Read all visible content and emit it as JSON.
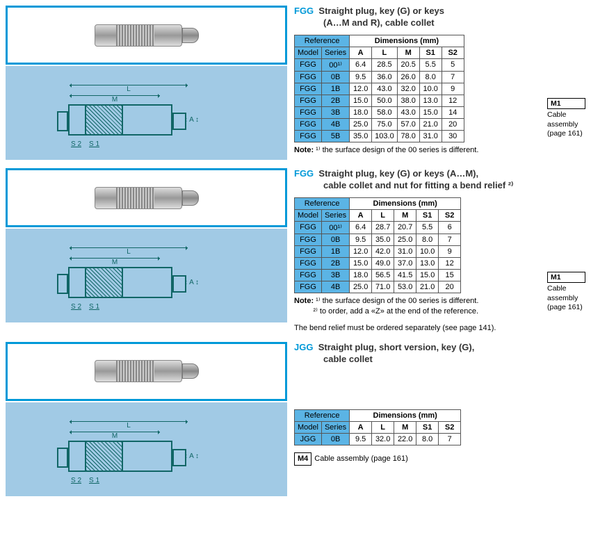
{
  "colors": {
    "accent": "#0099d8",
    "table_header": "#5bb4e5",
    "diagram_bg": "#a1cae5",
    "diagram_line": "#166"
  },
  "sections": [
    {
      "code": "FGG",
      "desc_l1": "Straight plug, key (G) or keys",
      "desc_l2": "(A…M and R), cable collet",
      "table": {
        "ref_header": "Reference",
        "dim_header": "Dimensions (mm)",
        "cols": [
          "Model",
          "Series",
          "A",
          "L",
          "M",
          "S1",
          "S2"
        ],
        "rows": [
          [
            "FGG",
            "00¹⁾",
            "6.4",
            "28.5",
            "20.5",
            "5.5",
            "5"
          ],
          [
            "FGG",
            "0B",
            "9.5",
            "36.0",
            "26.0",
            "8.0",
            "7"
          ],
          [
            "FGG",
            "1B",
            "12.0",
            "43.0",
            "32.0",
            "10.0",
            "9"
          ],
          [
            "FGG",
            "2B",
            "15.0",
            "50.0",
            "38.0",
            "13.0",
            "12"
          ],
          [
            "FGG",
            "3B",
            "18.0",
            "58.0",
            "43.0",
            "15.0",
            "14"
          ],
          [
            "FGG",
            "4B",
            "25.0",
            "75.0",
            "57.0",
            "21.0",
            "20"
          ],
          [
            "FGG",
            "5B",
            "35.0",
            "103.0",
            "78.0",
            "31.0",
            "30"
          ]
        ]
      },
      "notes": [
        "¹⁾ the surface design of the 00 series is different."
      ],
      "note_prefix": "Note:",
      "side": {
        "mark": "M1",
        "text_l1": "Cable assembly",
        "text_l2": "(page 161)"
      },
      "dims": {
        "L": "L",
        "M": "M",
        "A": "↕ A ↕",
        "S1": "S 1",
        "S2": "S 2"
      }
    },
    {
      "code": "FGG",
      "desc_l1": "Straight plug, key (G) or keys (A…M),",
      "desc_l2": "cable collet and nut for fitting a bend relief ²⁾",
      "table": {
        "ref_header": "Reference",
        "dim_header": "Dimensions (mm)",
        "cols": [
          "Model",
          "Series",
          "A",
          "L",
          "M",
          "S1",
          "S2"
        ],
        "rows": [
          [
            "FGG",
            "00¹⁾",
            "6.4",
            "28.7",
            "20.7",
            "5.5",
            "6"
          ],
          [
            "FGG",
            "0B",
            "9.5",
            "35.0",
            "25.0",
            "8.0",
            "7"
          ],
          [
            "FGG",
            "1B",
            "12.0",
            "42.0",
            "31.0",
            "10.0",
            "9"
          ],
          [
            "FGG",
            "2B",
            "15.0",
            "49.0",
            "37.0",
            "13.0",
            "12"
          ],
          [
            "FGG",
            "3B",
            "18.0",
            "56.5",
            "41.5",
            "15.0",
            "15"
          ],
          [
            "FGG",
            "4B",
            "25.0",
            "71.0",
            "53.0",
            "21.0",
            "20"
          ]
        ]
      },
      "notes": [
        "¹⁾ the surface design of the 00 series is different.",
        "²⁾ to order, add a «Z» at the end of the reference."
      ],
      "note_prefix": "Note:",
      "extra_note": "The bend relief must be ordered separately (see page 141).",
      "side": {
        "mark": "M1",
        "text_l1": "Cable assembly",
        "text_l2": "(page 161)"
      },
      "dims": {
        "L": "L",
        "M": "M",
        "A": "↕ A ↕",
        "S1": "S 1",
        "S2": "S 2"
      }
    },
    {
      "code": "JGG",
      "desc_l1": "Straight plug, short version, key (G),",
      "desc_l2": "cable collet",
      "table": {
        "ref_header": "Reference",
        "dim_header": "Dimensions (mm)",
        "cols": [
          "Model",
          "Series",
          "A",
          "L",
          "M",
          "S1",
          "S2"
        ],
        "rows": [
          [
            "JGG",
            "0B",
            "9.5",
            "32.0",
            "22.0",
            "8.0",
            "7"
          ]
        ]
      },
      "inline_side": {
        "mark": "M4",
        "text": "Cable assembly (page 161)"
      },
      "dims": {
        "L": "L",
        "M": "M",
        "A": "↕ A ↕",
        "S1": "S 1",
        "S2": "S 2"
      }
    }
  ]
}
